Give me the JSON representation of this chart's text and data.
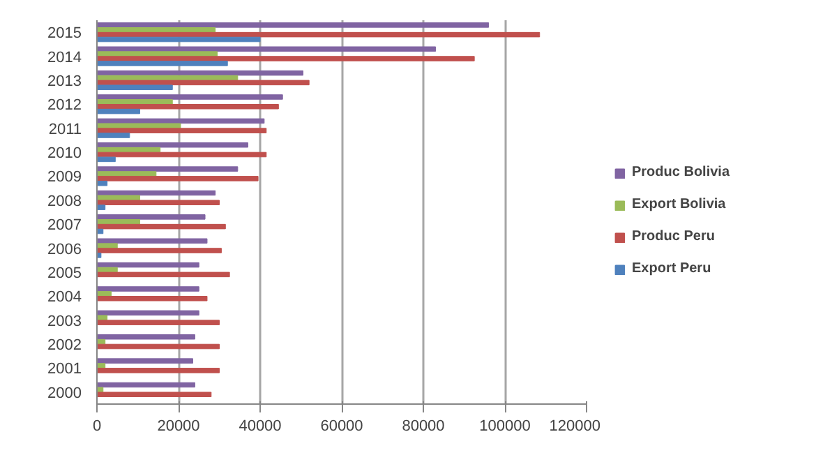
{
  "chart_data": {
    "type": "bar",
    "orientation": "horizontal",
    "categories": [
      "2015",
      "2014",
      "2013",
      "2012",
      "2011",
      "2010",
      "2009",
      "2008",
      "2007",
      "2006",
      "2005",
      "2004",
      "2003",
      "2002",
      "2001",
      "2000"
    ],
    "series": [
      {
        "name": "Produc Bolivia",
        "color": "#8064a2",
        "values": [
          96000,
          83000,
          50500,
          45500,
          41000,
          37000,
          34500,
          29000,
          26500,
          27000,
          25000,
          25000,
          25000,
          24000,
          23500,
          24000
        ]
      },
      {
        "name": "Export Bolivia",
        "color": "#9bbb59",
        "values": [
          29000,
          29500,
          34500,
          18500,
          20500,
          15500,
          14500,
          10500,
          10500,
          5000,
          5000,
          3500,
          2500,
          2000,
          2000,
          1500
        ]
      },
      {
        "name": "Produc Peru",
        "color": "#c0504d",
        "values": [
          108500,
          92500,
          52000,
          44500,
          41500,
          41500,
          39500,
          30000,
          31500,
          30500,
          32500,
          27000,
          30000,
          30000,
          30000,
          28000
        ]
      },
      {
        "name": "Export Peru",
        "color": "#4f81bd",
        "values": [
          40000,
          32000,
          18500,
          10500,
          8000,
          4500,
          2500,
          2000,
          1500,
          1000,
          0,
          0,
          0,
          0,
          0,
          0
        ]
      }
    ],
    "xlim": [
      0,
      120000
    ],
    "xticks": [
      0,
      20000,
      40000,
      60000,
      80000,
      100000,
      120000
    ],
    "grid": "x",
    "legend": "right"
  }
}
